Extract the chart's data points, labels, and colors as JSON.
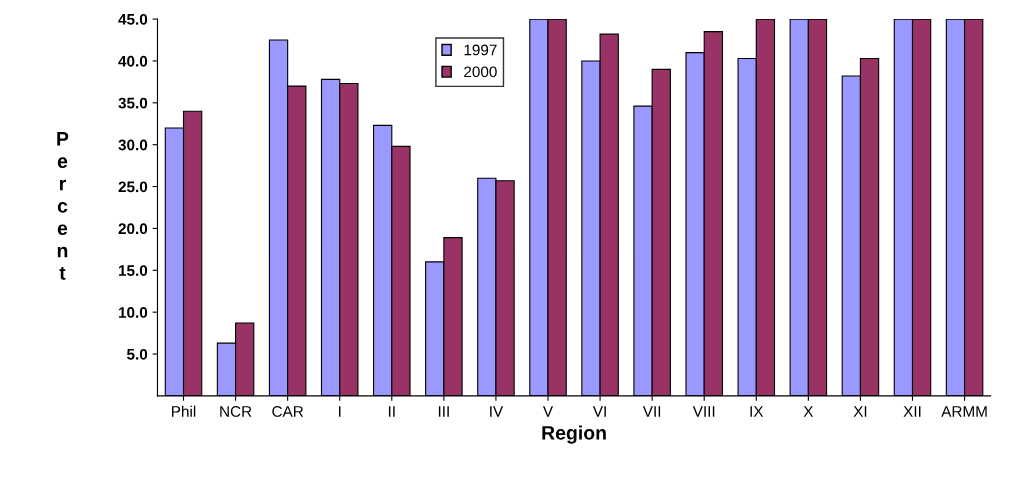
{
  "chart_data": {
    "type": "bar",
    "xlabel": "Region",
    "ylabel": "Percent",
    "categories": [
      "Phil",
      "NCR",
      "CAR",
      "I",
      "II",
      "III",
      "IV",
      "V",
      "VI",
      "VII",
      "VIII",
      "IX",
      "X",
      "XI",
      "XII",
      "ARMM"
    ],
    "series": [
      {
        "name": "1997",
        "color": "#9999ff",
        "values": [
          32.0,
          6.3,
          42.5,
          37.8,
          32.3,
          16.0,
          26.0,
          45.0,
          40.0,
          34.6,
          41.0,
          40.3,
          45.0,
          38.2,
          45.0,
          45.0
        ]
      },
      {
        "name": "2000",
        "color": "#993366",
        "values": [
          34.0,
          8.7,
          37.0,
          37.3,
          29.8,
          18.9,
          25.7,
          45.0,
          43.2,
          39.0,
          43.5,
          45.0,
          45.0,
          40.3,
          45.0,
          45.0
        ]
      }
    ],
    "ylim": [
      0,
      45
    ],
    "yticks": [
      {
        "value": 5,
        "label": "5.0"
      },
      {
        "value": 10,
        "label": "10.0"
      },
      {
        "value": 15,
        "label": "15.0"
      },
      {
        "value": 20,
        "label": "20.0"
      },
      {
        "value": 25,
        "label": "25.0"
      },
      {
        "value": 30,
        "label": "30.0"
      },
      {
        "value": 35,
        "label": "35.0"
      },
      {
        "value": 40,
        "label": "40.0"
      },
      {
        "value": 45,
        "label": "45.0"
      }
    ],
    "grid": false,
    "legend": "top"
  }
}
